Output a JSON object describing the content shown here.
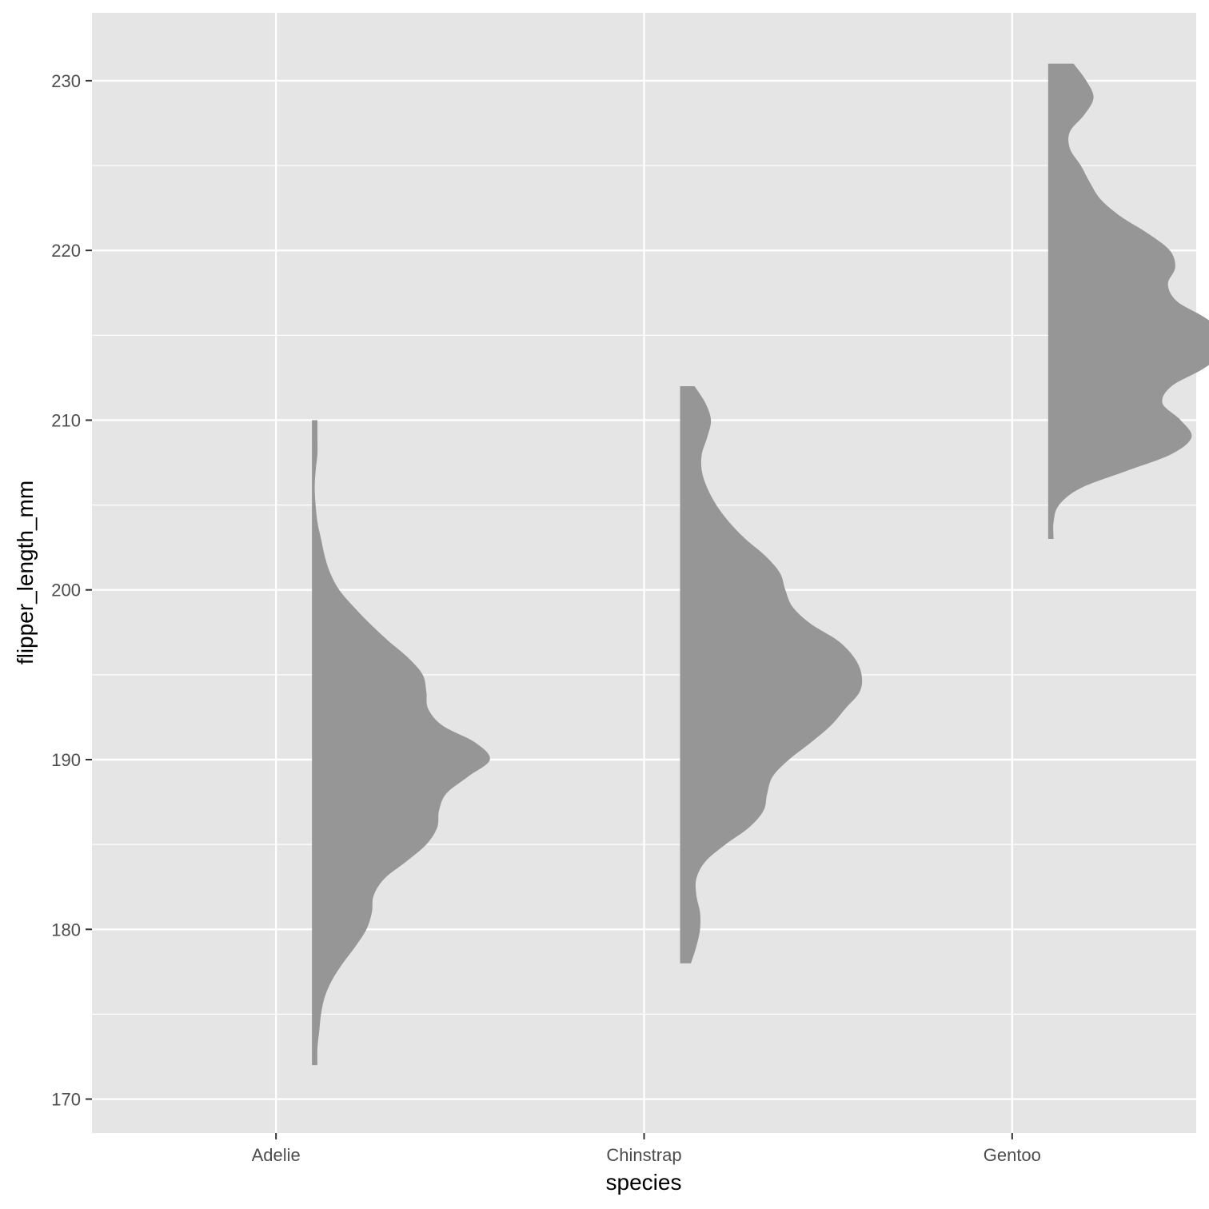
{
  "chart_data": {
    "type": "half-violin",
    "xlabel": "species",
    "ylabel": "flipper_length_mm",
    "categories": [
      "Adelie",
      "Chinstrap",
      "Gentoo"
    ],
    "ylim": [
      168,
      234
    ],
    "yticks": [
      170,
      180,
      190,
      200,
      210,
      220,
      230
    ],
    "grid": true,
    "fill_color": "#969696",
    "panel_color": "#e5e5e5",
    "grid_color": "#ffffff",
    "series": [
      {
        "category": "Adelie",
        "range": [
          172,
          210
        ],
        "density": [
          [
            172,
            0.03
          ],
          [
            173,
            0.03
          ],
          [
            174,
            0.04
          ],
          [
            175,
            0.05
          ],
          [
            176,
            0.07
          ],
          [
            177,
            0.11
          ],
          [
            178,
            0.17
          ],
          [
            179,
            0.24
          ],
          [
            180,
            0.3
          ],
          [
            181,
            0.33
          ],
          [
            182,
            0.34
          ],
          [
            183,
            0.4
          ],
          [
            184,
            0.52
          ],
          [
            185,
            0.63
          ],
          [
            186,
            0.69
          ],
          [
            187,
            0.7
          ],
          [
            188,
            0.74
          ],
          [
            189,
            0.86
          ],
          [
            190,
            0.98
          ],
          [
            191,
            0.9
          ],
          [
            192,
            0.72
          ],
          [
            193,
            0.64
          ],
          [
            194,
            0.63
          ],
          [
            195,
            0.61
          ],
          [
            196,
            0.53
          ],
          [
            197,
            0.42
          ],
          [
            198,
            0.32
          ],
          [
            199,
            0.23
          ],
          [
            200,
            0.15
          ],
          [
            201,
            0.1
          ],
          [
            202,
            0.07
          ],
          [
            203,
            0.05
          ],
          [
            204,
            0.03
          ],
          [
            205,
            0.02
          ],
          [
            206,
            0.015
          ],
          [
            207,
            0.02
          ],
          [
            208,
            0.03
          ],
          [
            209,
            0.03
          ],
          [
            210,
            0.03
          ]
        ]
      },
      {
        "category": "Chinstrap",
        "range": [
          178,
          212
        ],
        "density": [
          [
            178,
            0.06
          ],
          [
            179,
            0.09
          ],
          [
            180,
            0.11
          ],
          [
            181,
            0.11
          ],
          [
            182,
            0.09
          ],
          [
            183,
            0.09
          ],
          [
            184,
            0.14
          ],
          [
            185,
            0.25
          ],
          [
            186,
            0.38
          ],
          [
            187,
            0.46
          ],
          [
            188,
            0.48
          ],
          [
            189,
            0.51
          ],
          [
            190,
            0.6
          ],
          [
            191,
            0.72
          ],
          [
            192,
            0.83
          ],
          [
            193,
            0.91
          ],
          [
            194,
            0.99
          ],
          [
            195,
            1.0
          ],
          [
            196,
            0.96
          ],
          [
            197,
            0.87
          ],
          [
            198,
            0.72
          ],
          [
            199,
            0.62
          ],
          [
            200,
            0.58
          ],
          [
            201,
            0.55
          ],
          [
            202,
            0.47
          ],
          [
            203,
            0.36
          ],
          [
            204,
            0.27
          ],
          [
            205,
            0.2
          ],
          [
            206,
            0.15
          ],
          [
            207,
            0.12
          ],
          [
            208,
            0.12
          ],
          [
            209,
            0.15
          ],
          [
            210,
            0.17
          ],
          [
            211,
            0.14
          ],
          [
            212,
            0.08
          ]
        ]
      },
      {
        "category": "Gentoo",
        "range": [
          203,
          231
        ],
        "density": [
          [
            203,
            0.03
          ],
          [
            204,
            0.03
          ],
          [
            205,
            0.06
          ],
          [
            206,
            0.18
          ],
          [
            207,
            0.43
          ],
          [
            208,
            0.68
          ],
          [
            209,
            0.79
          ],
          [
            210,
            0.73
          ],
          [
            211,
            0.63
          ],
          [
            212,
            0.68
          ],
          [
            213,
            0.85
          ],
          [
            214,
            0.97
          ],
          [
            215,
            0.98
          ],
          [
            216,
            0.87
          ],
          [
            217,
            0.71
          ],
          [
            218,
            0.66
          ],
          [
            219,
            0.7
          ],
          [
            220,
            0.67
          ],
          [
            221,
            0.55
          ],
          [
            222,
            0.4
          ],
          [
            223,
            0.29
          ],
          [
            224,
            0.23
          ],
          [
            225,
            0.18
          ],
          [
            226,
            0.12
          ],
          [
            227,
            0.12
          ],
          [
            228,
            0.2
          ],
          [
            229,
            0.25
          ],
          [
            230,
            0.21
          ],
          [
            231,
            0.14
          ]
        ]
      }
    ]
  }
}
